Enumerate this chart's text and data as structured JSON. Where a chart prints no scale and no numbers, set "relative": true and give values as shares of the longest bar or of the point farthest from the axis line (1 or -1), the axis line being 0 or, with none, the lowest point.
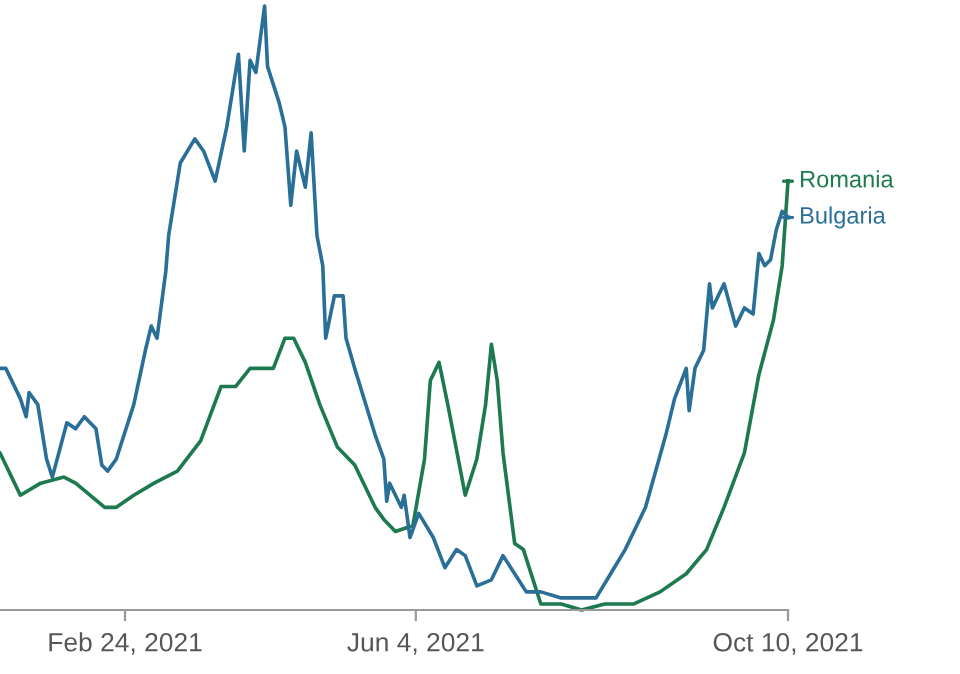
{
  "chart_data": {
    "type": "line",
    "relative": true,
    "legend": "right",
    "xlim": [
      "2021-01-12",
      "2021-10-10"
    ],
    "xticks": [
      {
        "value": "2021-02-24",
        "label": "Feb 24, 2021"
      },
      {
        "value": "2021-06-04",
        "label": "Jun 4, 2021"
      },
      {
        "value": "2021-10-10",
        "label": "Oct 10, 2021"
      }
    ],
    "series": [
      {
        "name": "Romania",
        "color": "#1d7a4e",
        "x": [
          "2021-01-12",
          "2021-01-16",
          "2021-01-19",
          "2021-01-26",
          "2021-02-03",
          "2021-02-07",
          "2021-02-17",
          "2021-02-21",
          "2021-02-27",
          "2021-03-06",
          "2021-03-14",
          "2021-03-22",
          "2021-03-29",
          "2021-04-03",
          "2021-04-08",
          "2021-04-16",
          "2021-04-20",
          "2021-04-23",
          "2021-04-27",
          "2021-05-02",
          "2021-05-08",
          "2021-05-14",
          "2021-05-21",
          "2021-05-24",
          "2021-05-28",
          "2021-06-03",
          "2021-06-07",
          "2021-06-09",
          "2021-06-12",
          "2021-06-15",
          "2021-06-21",
          "2021-06-25",
          "2021-06-28",
          "2021-06-30",
          "2021-07-02",
          "2021-07-04",
          "2021-07-08",
          "2021-07-11",
          "2021-07-15",
          "2021-07-17",
          "2021-07-24",
          "2021-07-31",
          "2021-08-08",
          "2021-08-18",
          "2021-08-27",
          "2021-09-05",
          "2021-09-12",
          "2021-09-18",
          "2021-09-25",
          "2021-09-30",
          "2021-10-05",
          "2021-10-08",
          "2021-10-10"
        ],
        "values": [
          0.26,
          0.22,
          0.19,
          0.21,
          0.22,
          0.21,
          0.17,
          0.17,
          0.19,
          0.21,
          0.23,
          0.28,
          0.37,
          0.37,
          0.4,
          0.4,
          0.45,
          0.45,
          0.41,
          0.34,
          0.27,
          0.24,
          0.17,
          0.15,
          0.13,
          0.14,
          0.25,
          0.38,
          0.41,
          0.34,
          0.19,
          0.25,
          0.34,
          0.44,
          0.38,
          0.26,
          0.11,
          0.1,
          0.04,
          0.01,
          0.01,
          0.0,
          0.01,
          0.01,
          0.03,
          0.06,
          0.1,
          0.17,
          0.26,
          0.39,
          0.48,
          0.57,
          0.71
        ]
      },
      {
        "name": "Bulgaria",
        "color": "#2a6f97",
        "x": [
          "2021-01-12",
          "2021-01-14",
          "2021-01-19",
          "2021-01-21",
          "2021-01-22",
          "2021-01-25",
          "2021-01-28",
          "2021-01-30",
          "2021-02-04",
          "2021-02-07",
          "2021-02-10",
          "2021-02-14",
          "2021-02-16",
          "2021-02-18",
          "2021-02-21",
          "2021-02-27",
          "2021-03-03",
          "2021-03-05",
          "2021-03-07",
          "2021-03-10",
          "2021-03-11",
          "2021-03-15",
          "2021-03-20",
          "2021-03-23",
          "2021-03-27",
          "2021-03-31",
          "2021-04-04",
          "2021-04-06",
          "2021-04-08",
          "2021-04-10",
          "2021-04-13",
          "2021-04-14",
          "2021-04-18",
          "2021-04-20",
          "2021-04-22",
          "2021-04-24",
          "2021-04-27",
          "2021-04-29",
          "2021-05-01",
          "2021-05-03",
          "2021-05-04",
          "2021-05-07",
          "2021-05-10",
          "2021-05-11",
          "2021-05-14",
          "2021-05-21",
          "2021-05-24",
          "2021-05-25",
          "2021-05-26",
          "2021-05-30",
          "2021-05-31",
          "2021-06-02",
          "2021-06-05",
          "2021-06-10",
          "2021-06-14",
          "2021-06-18",
          "2021-06-21",
          "2021-06-25",
          "2021-06-30",
          "2021-07-04",
          "2021-07-08",
          "2021-07-12",
          "2021-07-17",
          "2021-07-24",
          "2021-07-31",
          "2021-08-05",
          "2021-08-10",
          "2021-08-15",
          "2021-08-22",
          "2021-08-29",
          "2021-09-01",
          "2021-09-05",
          "2021-09-06",
          "2021-09-08",
          "2021-09-11",
          "2021-09-13",
          "2021-09-14",
          "2021-09-18",
          "2021-09-22",
          "2021-09-25",
          "2021-09-28",
          "2021-09-30",
          "2021-10-02",
          "2021-10-04",
          "2021-10-06",
          "2021-10-08",
          "2021-10-10"
        ],
        "values": [
          0.4,
          0.4,
          0.35,
          0.32,
          0.36,
          0.34,
          0.25,
          0.22,
          0.31,
          0.3,
          0.32,
          0.3,
          0.24,
          0.23,
          0.25,
          0.34,
          0.43,
          0.47,
          0.45,
          0.56,
          0.62,
          0.74,
          0.78,
          0.76,
          0.71,
          0.8,
          0.92,
          0.76,
          0.91,
          0.89,
          1,
          0.9,
          0.84,
          0.8,
          0.67,
          0.76,
          0.7,
          0.79,
          0.62,
          0.57,
          0.45,
          0.52,
          0.52,
          0.45,
          0.4,
          0.29,
          0.25,
          0.18,
          0.21,
          0.17,
          0.19,
          0.12,
          0.16,
          0.12,
          0.07,
          0.1,
          0.09,
          0.04,
          0.05,
          0.09,
          0.06,
          0.03,
          0.03,
          0.02,
          0.02,
          0.02,
          0.06,
          0.1,
          0.17,
          0.29,
          0.35,
          0.4,
          0.33,
          0.4,
          0.43,
          0.54,
          0.5,
          0.54,
          0.47,
          0.5,
          0.49,
          0.59,
          0.57,
          0.58,
          0.63,
          0.66,
          0.65
        ]
      }
    ]
  }
}
